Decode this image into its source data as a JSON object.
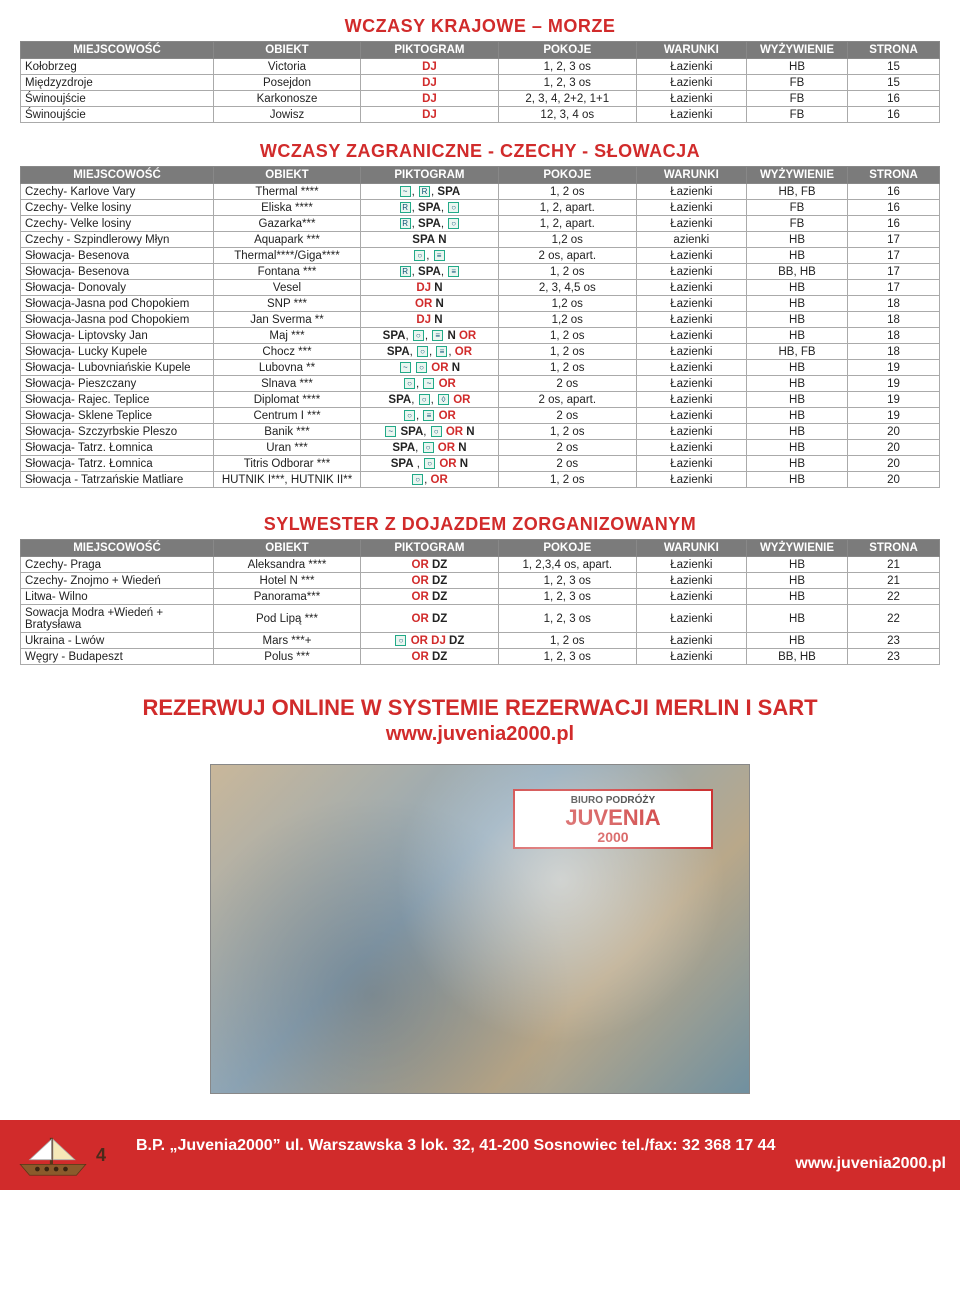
{
  "colors": {
    "red": "#d12b2b",
    "headerBg": "#7b7b7b",
    "border": "#aaa"
  },
  "headers": [
    "MIEJSCOWOŚĆ",
    "OBIEKT",
    "PIKTOGRAM",
    "POKOJE",
    "WARUNKI",
    "WYŻYWIENIE",
    "STRONA"
  ],
  "table1": {
    "title": "WCZASY KRAJOWE – MORZE",
    "rows": [
      {
        "m": "Kołobrzeg",
        "o": "Victoria",
        "pk": "DJ",
        "p": "1, 2, 3 os",
        "w": "Łazienki",
        "y": "HB",
        "s": "15"
      },
      {
        "m": "Międzyzdroje",
        "o": "Posejdon",
        "pk": "DJ",
        "p": "1, 2, 3 os",
        "w": "Łazienki",
        "y": "FB",
        "s": "15"
      },
      {
        "m": "Świnoujście",
        "o": "Karkonosze",
        "pk": "DJ",
        "p": "2, 3, 4, 2+2, 1+1",
        "w": "Łazienki",
        "y": "FB",
        "s": "16"
      },
      {
        "m": "Świnoujście",
        "o": "Jowisz",
        "pk": "DJ",
        "p": "12, 3, 4 os",
        "w": "Łazienki",
        "y": "FB",
        "s": "16"
      }
    ]
  },
  "table2": {
    "title": "WCZASY ZAGRANICZNE  - CZECHY - SŁOWACJA",
    "rows": [
      {
        "m": "Czechy- Karlove Vary",
        "o": "Thermal ****",
        "pk": "[W], [R], SPA",
        "p": "1, 2 os",
        "w": "Łazienki",
        "y": "HB, FB",
        "s": "16"
      },
      {
        "m": "Czechy- Velke losiny",
        "o": "Eliska ****",
        "pk": "[R], SPA, [O]",
        "p": "1, 2, apart.",
        "w": "Łazienki",
        "y": "FB",
        "s": "16"
      },
      {
        "m": "Czechy- Velke losiny",
        "o": "Gazarka***",
        "pk": "[R], SPA, [O]",
        "p": "1, 2, apart.",
        "w": "Łazienki",
        "y": "FB",
        "s": "16"
      },
      {
        "m": "Czechy - Szpindlerowy Młyn",
        "o": "Aquapark ***",
        "pk": "SPA N",
        "p": "1,2 os",
        "w": "azienki",
        "y": "HB",
        "s": "17"
      },
      {
        "m": "Słowacja- Besenova",
        "o": "Thermal****/Giga****",
        "pk": "[O], [≡]",
        "p": "2 os, apart.",
        "w": "Łazienki",
        "y": "HB",
        "s": "17"
      },
      {
        "m": "Słowacja- Besenova",
        "o": "Fontana ***",
        "pk": "[R], SPA, [≡]",
        "p": "1, 2 os",
        "w": "Łazienki",
        "y": "BB, HB",
        "s": "17"
      },
      {
        "m": "Słowacja- Donovaly",
        "o": "Vesel",
        "pk": "DJ N",
        "p": "2, 3, 4,5 os",
        "w": "Łazienki",
        "y": "HB",
        "s": "17"
      },
      {
        "m": "Słowacja-Jasna pod Chopokiem",
        "o": "SNP ***",
        "pk": "OR N",
        "p": "1,2 os",
        "w": "Łazienki",
        "y": "HB",
        "s": "18"
      },
      {
        "m": "Słowacja-Jasna pod Chopokiem",
        "o": "Jan Sverma **",
        "pk": "DJ N",
        "p": "1,2 os",
        "w": "Łazienki",
        "y": "HB",
        "s": "18"
      },
      {
        "m": "Słowacja- Liptovsky Jan",
        "o": "Maj ***",
        "pk": "SPA, [O], [≡] N OR",
        "p": "1, 2 os",
        "w": "Łazienki",
        "y": "HB",
        "s": "18"
      },
      {
        "m": "Słowacja- Lucky Kupele",
        "o": "Chocz ***",
        "pk": "SPA, [O], [≡], OR",
        "p": "1, 2 os",
        "w": "Łazienki",
        "y": "HB, FB",
        "s": "18"
      },
      {
        "m": "Słowacja- Lubovniańskie Kupele",
        "o": "Lubovna **",
        "pk": "[W] [O] OR N",
        "p": "1, 2 os",
        "w": "Łazienki",
        "y": "HB",
        "s": "19"
      },
      {
        "m": "Słowacja- Pieszczany",
        "o": "Slnava ***",
        "pk": "[O], [W] OR",
        "p": "2 os",
        "w": "Łazienki",
        "y": "HB",
        "s": "19"
      },
      {
        "m": "Słowacja- Rajec. Teplice",
        "o": "Diplomat ****",
        "pk": "SPA, [O], [◊] OR",
        "p": "2 os, apart.",
        "w": "Łazienki",
        "y": "HB",
        "s": "19"
      },
      {
        "m": "Słowacja- Sklene Teplice",
        "o": "Centrum I ***",
        "pk": "[O], [≡] OR",
        "p": "2 os",
        "w": "Łazienki",
        "y": "HB",
        "s": "19"
      },
      {
        "m": "Słowacja- Szczyrbskie Pleszo",
        "o": "Banik ***",
        "pk": "[W] SPA, [O] OR N",
        "p": "1, 2 os",
        "w": "Łazienki",
        "y": "HB",
        "s": "20"
      },
      {
        "m": "Słowacja- Tatrz. Łomnica",
        "o": "Uran ***",
        "pk": "SPA, [O] OR N",
        "p": "2 os",
        "w": "Łazienki",
        "y": "HB",
        "s": "20"
      },
      {
        "m": "Słowacja- Tatrz. Łomnica",
        "o": "Titris Odborar ***",
        "pk": "SPA , [O] OR N",
        "p": "2 os",
        "w": "Łazienki",
        "y": "HB",
        "s": "20"
      },
      {
        "m": "Słowacja - Tatrzańskie Matliare",
        "o": "HUTNIK I***, HUTNIK II**",
        "pk": "[O], OR",
        "p": "1, 2 os",
        "w": "Łazienki",
        "y": "HB",
        "s": "20"
      }
    ]
  },
  "table3": {
    "title": "SYLWESTER Z DOJAZDEM ZORGANIZOWANYM",
    "rows": [
      {
        "m": "Czechy- Praga",
        "o": "Aleksandra ****",
        "pk": "OR DZ",
        "p": "1, 2,3,4 os, apart.",
        "w": "Łazienki",
        "y": "HB",
        "s": "21"
      },
      {
        "m": "Czechy- Znojmo + Wiedeń",
        "o": "Hotel N ***",
        "pk": "OR DZ",
        "p": "1, 2, 3 os",
        "w": "Łazienki",
        "y": "HB",
        "s": "21"
      },
      {
        "m": "Litwa- Wilno",
        "o": "Panorama***",
        "pk": "OR DZ",
        "p": "1, 2, 3 os",
        "w": "Łazienki",
        "y": "HB",
        "s": "22"
      },
      {
        "m": "Sowacja Modra +Wiedeń + Bratysława",
        "o": "Pod Lipą ***",
        "pk": "OR DZ",
        "p": "1, 2, 3 os",
        "w": "Łazienki",
        "y": "HB",
        "s": "22"
      },
      {
        "m": "Ukraina - Lwów",
        "o": "Mars ***+",
        "pk": "[O] OR DJ DZ",
        "p": "1, 2 os",
        "w": "Łazienki",
        "y": "HB",
        "s": "23"
      },
      {
        "m": "Węgry - Budapeszt",
        "o": "Polus ***",
        "pk": "OR DZ",
        "p": "1, 2, 3 os",
        "w": "Łazienki",
        "y": "BB, HB",
        "s": "23"
      }
    ]
  },
  "booking": {
    "line1": "REZERWUJ ONLINE W SYSTEMIE REZERWACJI MERLIN I SART",
    "url": "www.juvenia2000.pl"
  },
  "photoSign": {
    "top": "BIURO PODRÓŻY",
    "main": "JUVENIA",
    "sub": "2000"
  },
  "footer": {
    "pagenum": "4",
    "line1": "B.P. „Juvenia2000”  ul. Warszawska 3  lok. 32, 41-200 Sosnowiec  tel./fax: 32 368 17 44",
    "line2": "www.juvenia2000.pl"
  }
}
